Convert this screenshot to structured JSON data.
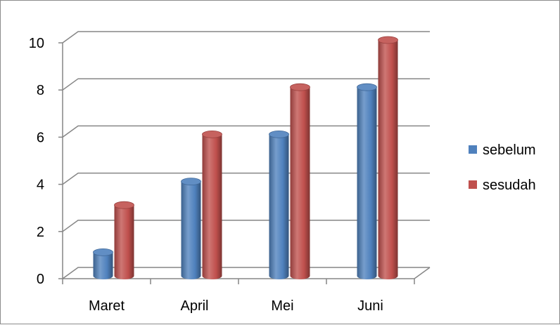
{
  "chart_data": {
    "type": "bar",
    "title": "",
    "xlabel": "",
    "ylabel": "",
    "categories": [
      "Maret",
      "April",
      "Mei",
      "Juni"
    ],
    "series": [
      {
        "name": "sebelum",
        "values": [
          1,
          4,
          6,
          8
        ],
        "color": "#4f81bd"
      },
      {
        "name": "sesudah",
        "values": [
          3,
          6,
          8,
          10
        ],
        "color": "#c0504d"
      }
    ],
    "ylim": [
      0,
      10
    ],
    "yticks": [
      0,
      2,
      4,
      6,
      8,
      10
    ],
    "grid": true,
    "legend_position": "right",
    "style": "3d-cylinder"
  }
}
